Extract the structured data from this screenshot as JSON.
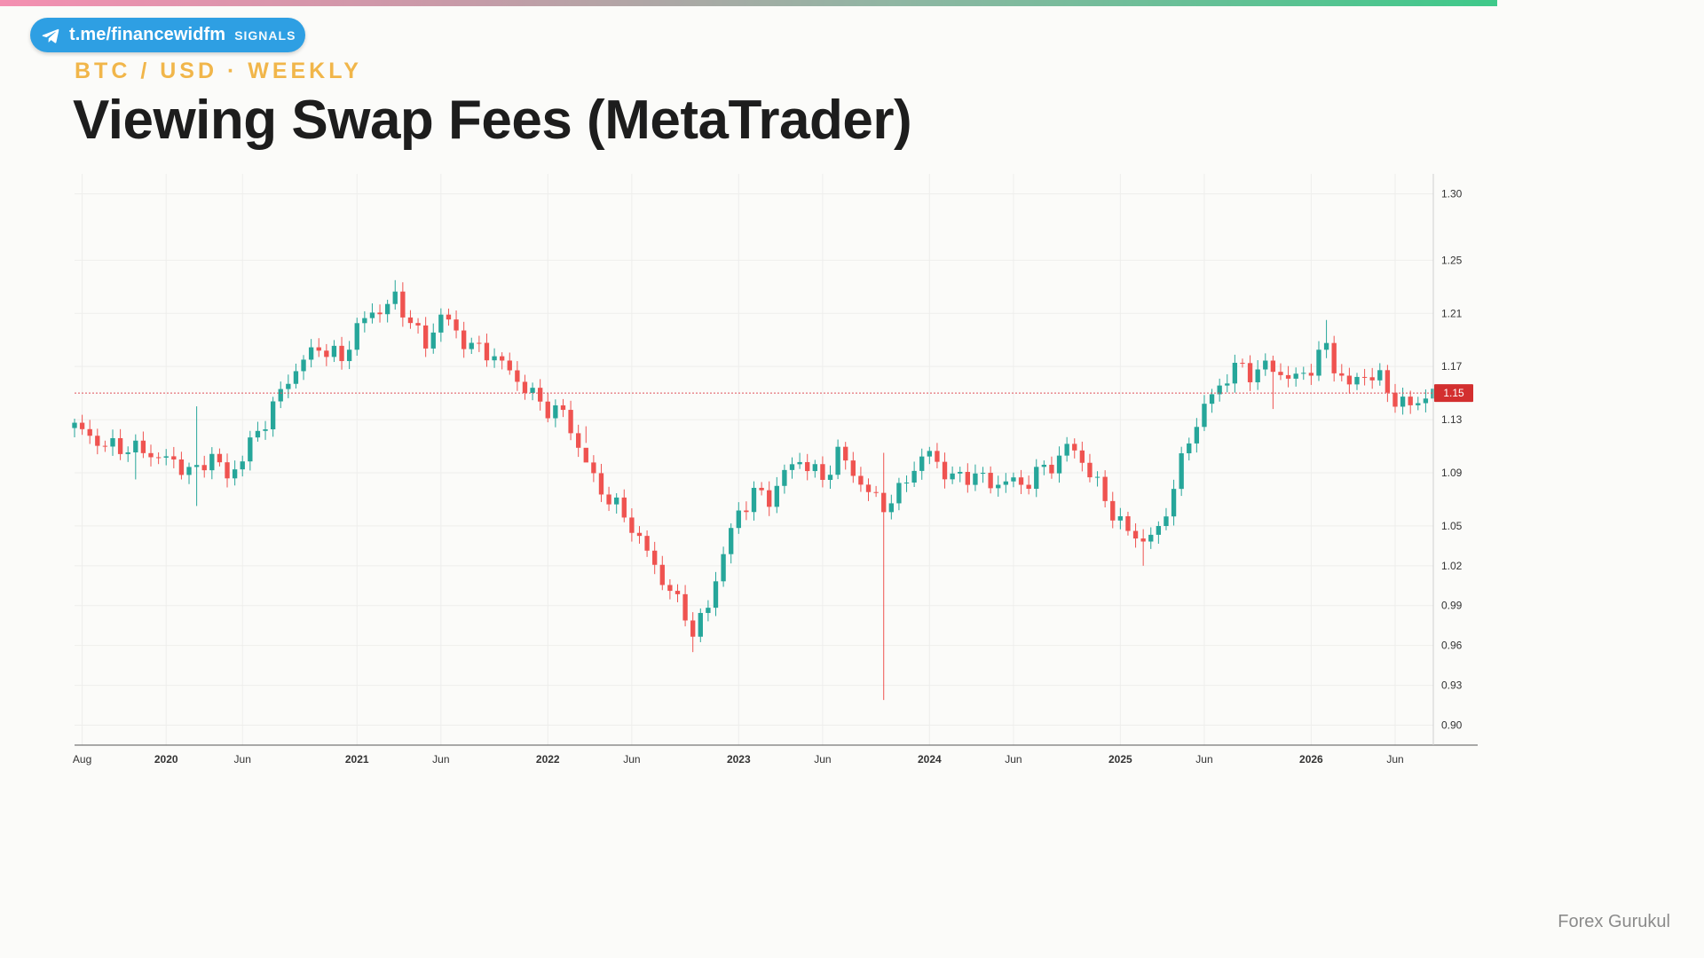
{
  "banner": {
    "handle": "t.me/financewidfm",
    "tag": "SIGNALS",
    "icon": "telegram-icon",
    "color": "#2e9fe3"
  },
  "header": {
    "kicker": "BTC / USD · WEEKLY",
    "title": "Viewing Swap Fees (MetaTrader)"
  },
  "footer": {
    "watermark": "Forex Gurukul"
  },
  "colors": {
    "up": "#26a69a",
    "down": "#ef5350",
    "price_line": "#e0505a",
    "price_badge": "#d32f2f",
    "grid": "#eeeeec",
    "kicker": "#f1b64a"
  },
  "chart_data": {
    "type": "candlestick",
    "timeframe": "weekly",
    "grid": true,
    "current_price": 1.15,
    "current_price_label": "1.15",
    "y_ticks": [
      "1.30",
      "1.25",
      "1.21",
      "1.17",
      "1.13",
      "1.09",
      "1.05",
      "1.02",
      "0.99",
      "0.96",
      "0.93",
      "0.90"
    ],
    "y_range": [
      0.885,
      1.315
    ],
    "x_ticks": [
      {
        "label": "Aug",
        "bold": false
      },
      {
        "label": "2020",
        "bold": true
      },
      {
        "label": "Jun",
        "bold": false
      },
      {
        "label": "2021",
        "bold": true
      },
      {
        "label": "Jun",
        "bold": false
      },
      {
        "label": "2022",
        "bold": true
      },
      {
        "label": "Jun",
        "bold": false
      },
      {
        "label": "2023",
        "bold": true
      },
      {
        "label": "Jun",
        "bold": false
      },
      {
        "label": "2024",
        "bold": true
      },
      {
        "label": "Jun",
        "bold": false
      },
      {
        "label": "2025",
        "bold": true
      },
      {
        "label": "Jun",
        "bold": false
      },
      {
        "label": "2026",
        "bold": true
      },
      {
        "label": "Jun",
        "bold": false
      }
    ],
    "x_tick_index": [
      1,
      12,
      22,
      37,
      48,
      62,
      73,
      87,
      98,
      112,
      123,
      137,
      148,
      162,
      173
    ],
    "close_path": [
      [
        0,
        1.125
      ],
      [
        4,
        1.11
      ],
      [
        8,
        1.108
      ],
      [
        12,
        1.1
      ],
      [
        16,
        1.09
      ],
      [
        18,
        1.105
      ],
      [
        20,
        1.085
      ],
      [
        24,
        1.12
      ],
      [
        26,
        1.14
      ],
      [
        28,
        1.16
      ],
      [
        30,
        1.175
      ],
      [
        32,
        1.185
      ],
      [
        35,
        1.175
      ],
      [
        37,
        1.2
      ],
      [
        39,
        1.21
      ],
      [
        42,
        1.22
      ],
      [
        44,
        1.205
      ],
      [
        46,
        1.185
      ],
      [
        48,
        1.21
      ],
      [
        50,
        1.195
      ],
      [
        52,
        1.185
      ],
      [
        55,
        1.178
      ],
      [
        58,
        1.16
      ],
      [
        60,
        1.148
      ],
      [
        62,
        1.138
      ],
      [
        64,
        1.135
      ],
      [
        66,
        1.11
      ],
      [
        68,
        1.085
      ],
      [
        70,
        1.07
      ],
      [
        72,
        1.058
      ],
      [
        74,
        1.04
      ],
      [
        76,
        1.02
      ],
      [
        78,
        1.0
      ],
      [
        80,
        0.985
      ],
      [
        81,
        0.968
      ],
      [
        83,
        0.99
      ],
      [
        85,
        1.03
      ],
      [
        87,
        1.06
      ],
      [
        89,
        1.075
      ],
      [
        91,
        1.07
      ],
      [
        93,
        1.09
      ],
      [
        95,
        1.1
      ],
      [
        97,
        1.09
      ],
      [
        98,
        1.085
      ],
      [
        100,
        1.105
      ],
      [
        102,
        1.09
      ],
      [
        104,
        1.075
      ],
      [
        106,
        1.065
      ],
      [
        108,
        1.075
      ],
      [
        110,
        1.095
      ],
      [
        112,
        1.105
      ],
      [
        114,
        1.09
      ],
      [
        116,
        1.085
      ],
      [
        118,
        1.09
      ],
      [
        120,
        1.08
      ],
      [
        122,
        1.085
      ],
      [
        124,
        1.08
      ],
      [
        126,
        1.09
      ],
      [
        128,
        1.095
      ],
      [
        130,
        1.11
      ],
      [
        132,
        1.1
      ],
      [
        134,
        1.08
      ],
      [
        136,
        1.06
      ],
      [
        138,
        1.045
      ],
      [
        140,
        1.04
      ],
      [
        142,
        1.045
      ],
      [
        144,
        1.08
      ],
      [
        146,
        1.115
      ],
      [
        148,
        1.14
      ],
      [
        150,
        1.155
      ],
      [
        152,
        1.17
      ],
      [
        154,
        1.165
      ],
      [
        156,
        1.17
      ],
      [
        158,
        1.165
      ],
      [
        160,
        1.16
      ],
      [
        162,
        1.17
      ],
      [
        164,
        1.185
      ],
      [
        165,
        1.17
      ],
      [
        167,
        1.155
      ],
      [
        169,
        1.165
      ],
      [
        171,
        1.16
      ],
      [
        173,
        1.145
      ],
      [
        175,
        1.14
      ],
      [
        177,
        1.148
      ],
      [
        178,
        1.152
      ]
    ],
    "overrides": [
      {
        "i": 8,
        "low": 1.085
      },
      {
        "i": 16,
        "high": 1.14,
        "low": 1.065
      },
      {
        "i": 42,
        "high": 1.235
      },
      {
        "i": 67,
        "low": 1.125
      },
      {
        "i": 81,
        "low": 0.955
      },
      {
        "i": 106,
        "low": 0.919,
        "high": 1.105
      },
      {
        "i": 140,
        "low": 1.02
      },
      {
        "i": 157,
        "low": 1.138
      },
      {
        "i": 164,
        "high": 1.205
      }
    ],
    "candle_count": 179
  }
}
